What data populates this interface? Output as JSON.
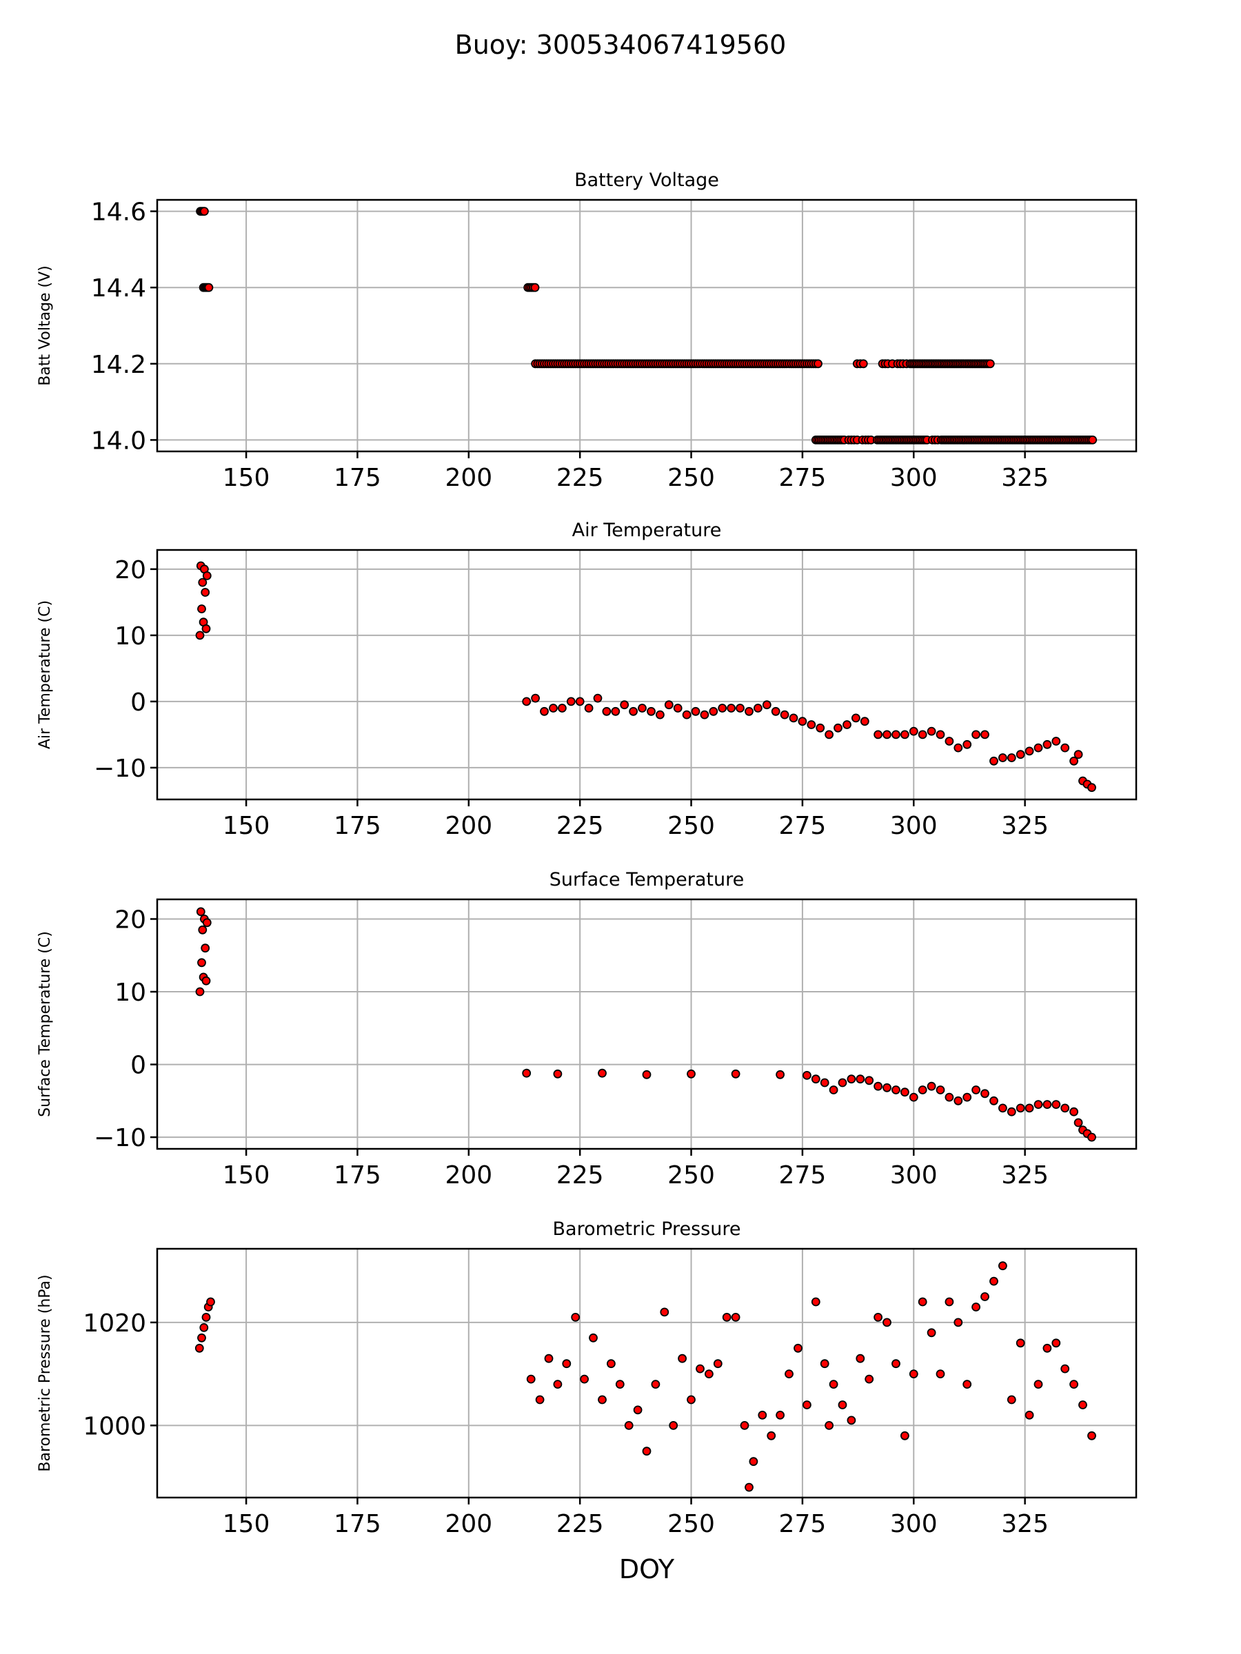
{
  "figure": {
    "suptitle": "Buoy: 300534067419560",
    "xlabel": "DOY",
    "marker_fill": "#ff0000",
    "marker_edge": "#000000"
  },
  "chart_data": [
    {
      "type": "scatter",
      "title": "Battery Voltage",
      "ylabel": "Batt Voltage (V)",
      "xlabel": "",
      "xlim": [
        130,
        350
      ],
      "ylim": [
        13.97,
        14.63
      ],
      "xticks": [
        150,
        175,
        200,
        225,
        250,
        275,
        300,
        325
      ],
      "yticks": [
        14.0,
        14.2,
        14.4,
        14.6
      ],
      "ytick_labels": [
        "14.0",
        "14.2",
        "14.4",
        "14.6"
      ],
      "grid": true,
      "series": [
        {
          "segments": [
            {
              "x": [
                139.7,
                140.0,
                140.3,
                140.6
              ],
              "y": 14.6
            },
            {
              "x": [
                140.4,
                140.7,
                141.0,
                141.3,
                141.6
              ],
              "y": 14.4
            },
            {
              "x": [
                213.3,
                213.7,
                214.1,
                214.5,
                214.9
              ],
              "y": 14.4
            },
            {
              "x_from": 215,
              "x_to": 278.5,
              "step": 0.5,
              "y": 14.2
            },
            {
              "x": [
                287.3,
                288.0,
                288.7,
                293.0,
                293.6,
                294.2,
                295.2,
                296.4,
                297.0,
                297.6,
                298.4
              ],
              "y": 14.2
            },
            {
              "x_from": 299.2,
              "x_to": 317.5,
              "step": 0.4,
              "y": 14.2
            },
            {
              "x_from": 278,
              "x_to": 284.5,
              "step": 0.4,
              "y": 14.0
            },
            {
              "x": [
                285.4,
                286.0,
                286.6,
                287.3,
                288.5,
                289.2,
                289.8,
                290.4
              ],
              "y": 14.0
            },
            {
              "x_from": 291.8,
              "x_to": 303.0,
              "step": 0.4,
              "y": 14.0
            },
            {
              "x": [
                304.2,
                304.8,
                305.4
              ],
              "y": 14.0
            },
            {
              "x_from": 306.2,
              "x_to": 340.4,
              "step": 0.4,
              "y": 14.0
            }
          ]
        }
      ]
    },
    {
      "type": "scatter",
      "title": "Air Temperature",
      "ylabel": "Air Temperature (C)",
      "xlabel": "",
      "xlim": [
        130,
        350
      ],
      "ylim": [
        -14.8,
        22.9
      ],
      "xticks": [
        150,
        175,
        200,
        225,
        250,
        275,
        300,
        325
      ],
      "yticks": [
        -10,
        0,
        10,
        20
      ],
      "ytick_labels": [
        "−10",
        "0",
        "10",
        "20"
      ],
      "grid": true,
      "series": [
        {
          "x": [
            139.6,
            139.8,
            140.0,
            140.2,
            140.4,
            140.6,
            140.8,
            141.0,
            141.2,
            213.0,
            215.0,
            217.0,
            219.0,
            221.0,
            223.0,
            225.0,
            227.0,
            229.0,
            231.0,
            233.0,
            235.0,
            237.0,
            239.0,
            241.0,
            243.0,
            245.0,
            247.0,
            249.0,
            251.0,
            253.0,
            255.0,
            257.0,
            259.0,
            261.0,
            263.0,
            265.0,
            267.0,
            269.0,
            271.0,
            273.0,
            275.0,
            277.0,
            279.0,
            281.0,
            283.0,
            285.0,
            287.0,
            289.0,
            292.0,
            294.0,
            296.0,
            298.0,
            300.0,
            302.0,
            304.0,
            306.0,
            308.0,
            310.0,
            312.0,
            314.0,
            316.0,
            318.0,
            320.0,
            322.0,
            324.0,
            326.0,
            328.0,
            330.0,
            332.0,
            334.0,
            336.0,
            337.0,
            338.0,
            339.0,
            340.0
          ],
          "y": [
            10.0,
            20.5,
            14.0,
            18.0,
            12.0,
            20.0,
            16.5,
            11.0,
            19.0,
            0.0,
            0.5,
            -1.5,
            -1.0,
            -1.0,
            0.0,
            0.0,
            -1.0,
            0.5,
            -1.5,
            -1.5,
            -0.5,
            -1.5,
            -1.0,
            -1.5,
            -2.0,
            -0.5,
            -1.0,
            -2.0,
            -1.5,
            -2.0,
            -1.5,
            -1.0,
            -1.0,
            -1.0,
            -1.5,
            -1.0,
            -0.5,
            -1.5,
            -2.0,
            -2.5,
            -3.0,
            -3.5,
            -4.0,
            -5.0,
            -4.0,
            -3.5,
            -2.5,
            -3.0,
            -5.0,
            -5.0,
            -5.0,
            -5.0,
            -4.5,
            -5.0,
            -4.5,
            -5.0,
            -6.0,
            -7.0,
            -6.5,
            -5.0,
            -5.0,
            -9.0,
            -8.5,
            -8.5,
            -8.0,
            -7.5,
            -7.0,
            -6.5,
            -6.0,
            -7.0,
            -9.0,
            -8.0,
            -12.0,
            -12.5,
            -13.0
          ]
        }
      ]
    },
    {
      "type": "scatter",
      "title": "Surface Temperature",
      "ylabel": "Surface Temperature (C)",
      "xlabel": "",
      "xlim": [
        130,
        350
      ],
      "ylim": [
        -11.6,
        22.7
      ],
      "xticks": [
        150,
        175,
        200,
        225,
        250,
        275,
        300,
        325
      ],
      "yticks": [
        -10,
        0,
        10,
        20
      ],
      "ytick_labels": [
        "−10",
        "0",
        "10",
        "20"
      ],
      "grid": true,
      "series": [
        {
          "x": [
            139.6,
            139.8,
            140.0,
            140.2,
            140.4,
            140.6,
            140.8,
            141.0,
            141.2,
            213.0,
            220.0,
            230.0,
            240.0,
            250.0,
            260.0,
            270.0,
            276.0,
            278.0,
            280.0,
            282.0,
            284.0,
            286.0,
            288.0,
            290.0,
            292.0,
            294.0,
            296.0,
            298.0,
            300.0,
            302.0,
            304.0,
            306.0,
            308.0,
            310.0,
            312.0,
            314.0,
            316.0,
            318.0,
            320.0,
            322.0,
            324.0,
            326.0,
            328.0,
            330.0,
            332.0,
            334.0,
            336.0,
            337.0,
            338.0,
            339.0,
            340.0
          ],
          "y": [
            10.0,
            21.0,
            14.0,
            18.5,
            12.0,
            20.0,
            16.0,
            11.5,
            19.5,
            -1.2,
            -1.3,
            -1.2,
            -1.4,
            -1.3,
            -1.3,
            -1.4,
            -1.5,
            -2.0,
            -2.5,
            -3.5,
            -2.5,
            -2.0,
            -2.0,
            -2.2,
            -3.0,
            -3.2,
            -3.5,
            -3.8,
            -4.5,
            -3.5,
            -3.0,
            -3.5,
            -4.5,
            -5.0,
            -4.5,
            -3.5,
            -4.0,
            -5.0,
            -6.0,
            -6.5,
            -6.0,
            -6.0,
            -5.5,
            -5.5,
            -5.5,
            -6.0,
            -6.5,
            -8.0,
            -9.0,
            -9.5,
            -10.0
          ]
        }
      ]
    },
    {
      "type": "scatter",
      "title": "Barometric Pressure",
      "ylabel": "Barometric Pressure (hPa)",
      "xlabel": "DOY",
      "xlim": [
        130,
        350
      ],
      "ylim": [
        986,
        1034.3
      ],
      "xticks": [
        150,
        175,
        200,
        225,
        250,
        275,
        300,
        325
      ],
      "yticks": [
        1000,
        1020
      ],
      "ytick_labels": [
        "1000",
        "1020"
      ],
      "grid": true,
      "series": [
        {
          "x": [
            139.5,
            140.0,
            140.5,
            141.0,
            141.5,
            142.0,
            214.0,
            216.0,
            218.0,
            220.0,
            222.0,
            224.0,
            226.0,
            228.0,
            230.0,
            232.0,
            234.0,
            236.0,
            238.0,
            240.0,
            242.0,
            244.0,
            246.0,
            248.0,
            250.0,
            252.0,
            254.0,
            256.0,
            258.0,
            260.0,
            262.0,
            263.0,
            264.0,
            266.0,
            268.0,
            270.0,
            272.0,
            274.0,
            276.0,
            278.0,
            280.0,
            281.0,
            282.0,
            284.0,
            286.0,
            288.0,
            290.0,
            292.0,
            294.0,
            296.0,
            298.0,
            300.0,
            302.0,
            304.0,
            306.0,
            308.0,
            310.0,
            312.0,
            314.0,
            316.0,
            318.0,
            320.0,
            322.0,
            324.0,
            326.0,
            328.0,
            330.0,
            332.0,
            334.0,
            336.0,
            338.0,
            340.0
          ],
          "y": [
            1015.0,
            1017.0,
            1019.0,
            1021.0,
            1023.0,
            1024.0,
            1009.0,
            1005.0,
            1013.0,
            1008.0,
            1012.0,
            1021.0,
            1009.0,
            1017.0,
            1005.0,
            1012.0,
            1008.0,
            1000.0,
            1003.0,
            995.0,
            1008.0,
            1022.0,
            1000.0,
            1013.0,
            1005.0,
            1011.0,
            1010.0,
            1012.0,
            1021.0,
            1021.0,
            1000.0,
            988.0,
            993.0,
            1002.0,
            998.0,
            1002.0,
            1010.0,
            1015.0,
            1004.0,
            1024.0,
            1012.0,
            1000.0,
            1008.0,
            1004.0,
            1001.0,
            1013.0,
            1009.0,
            1021.0,
            1020.0,
            1012.0,
            998.0,
            1010.0,
            1024.0,
            1018.0,
            1010.0,
            1024.0,
            1020.0,
            1008.0,
            1023.0,
            1025.0,
            1028.0,
            1031.0,
            1005.0,
            1016.0,
            1002.0,
            1008.0,
            1015.0,
            1016.0,
            1011.0,
            1008.0,
            1004.0,
            998.0
          ]
        }
      ]
    }
  ]
}
